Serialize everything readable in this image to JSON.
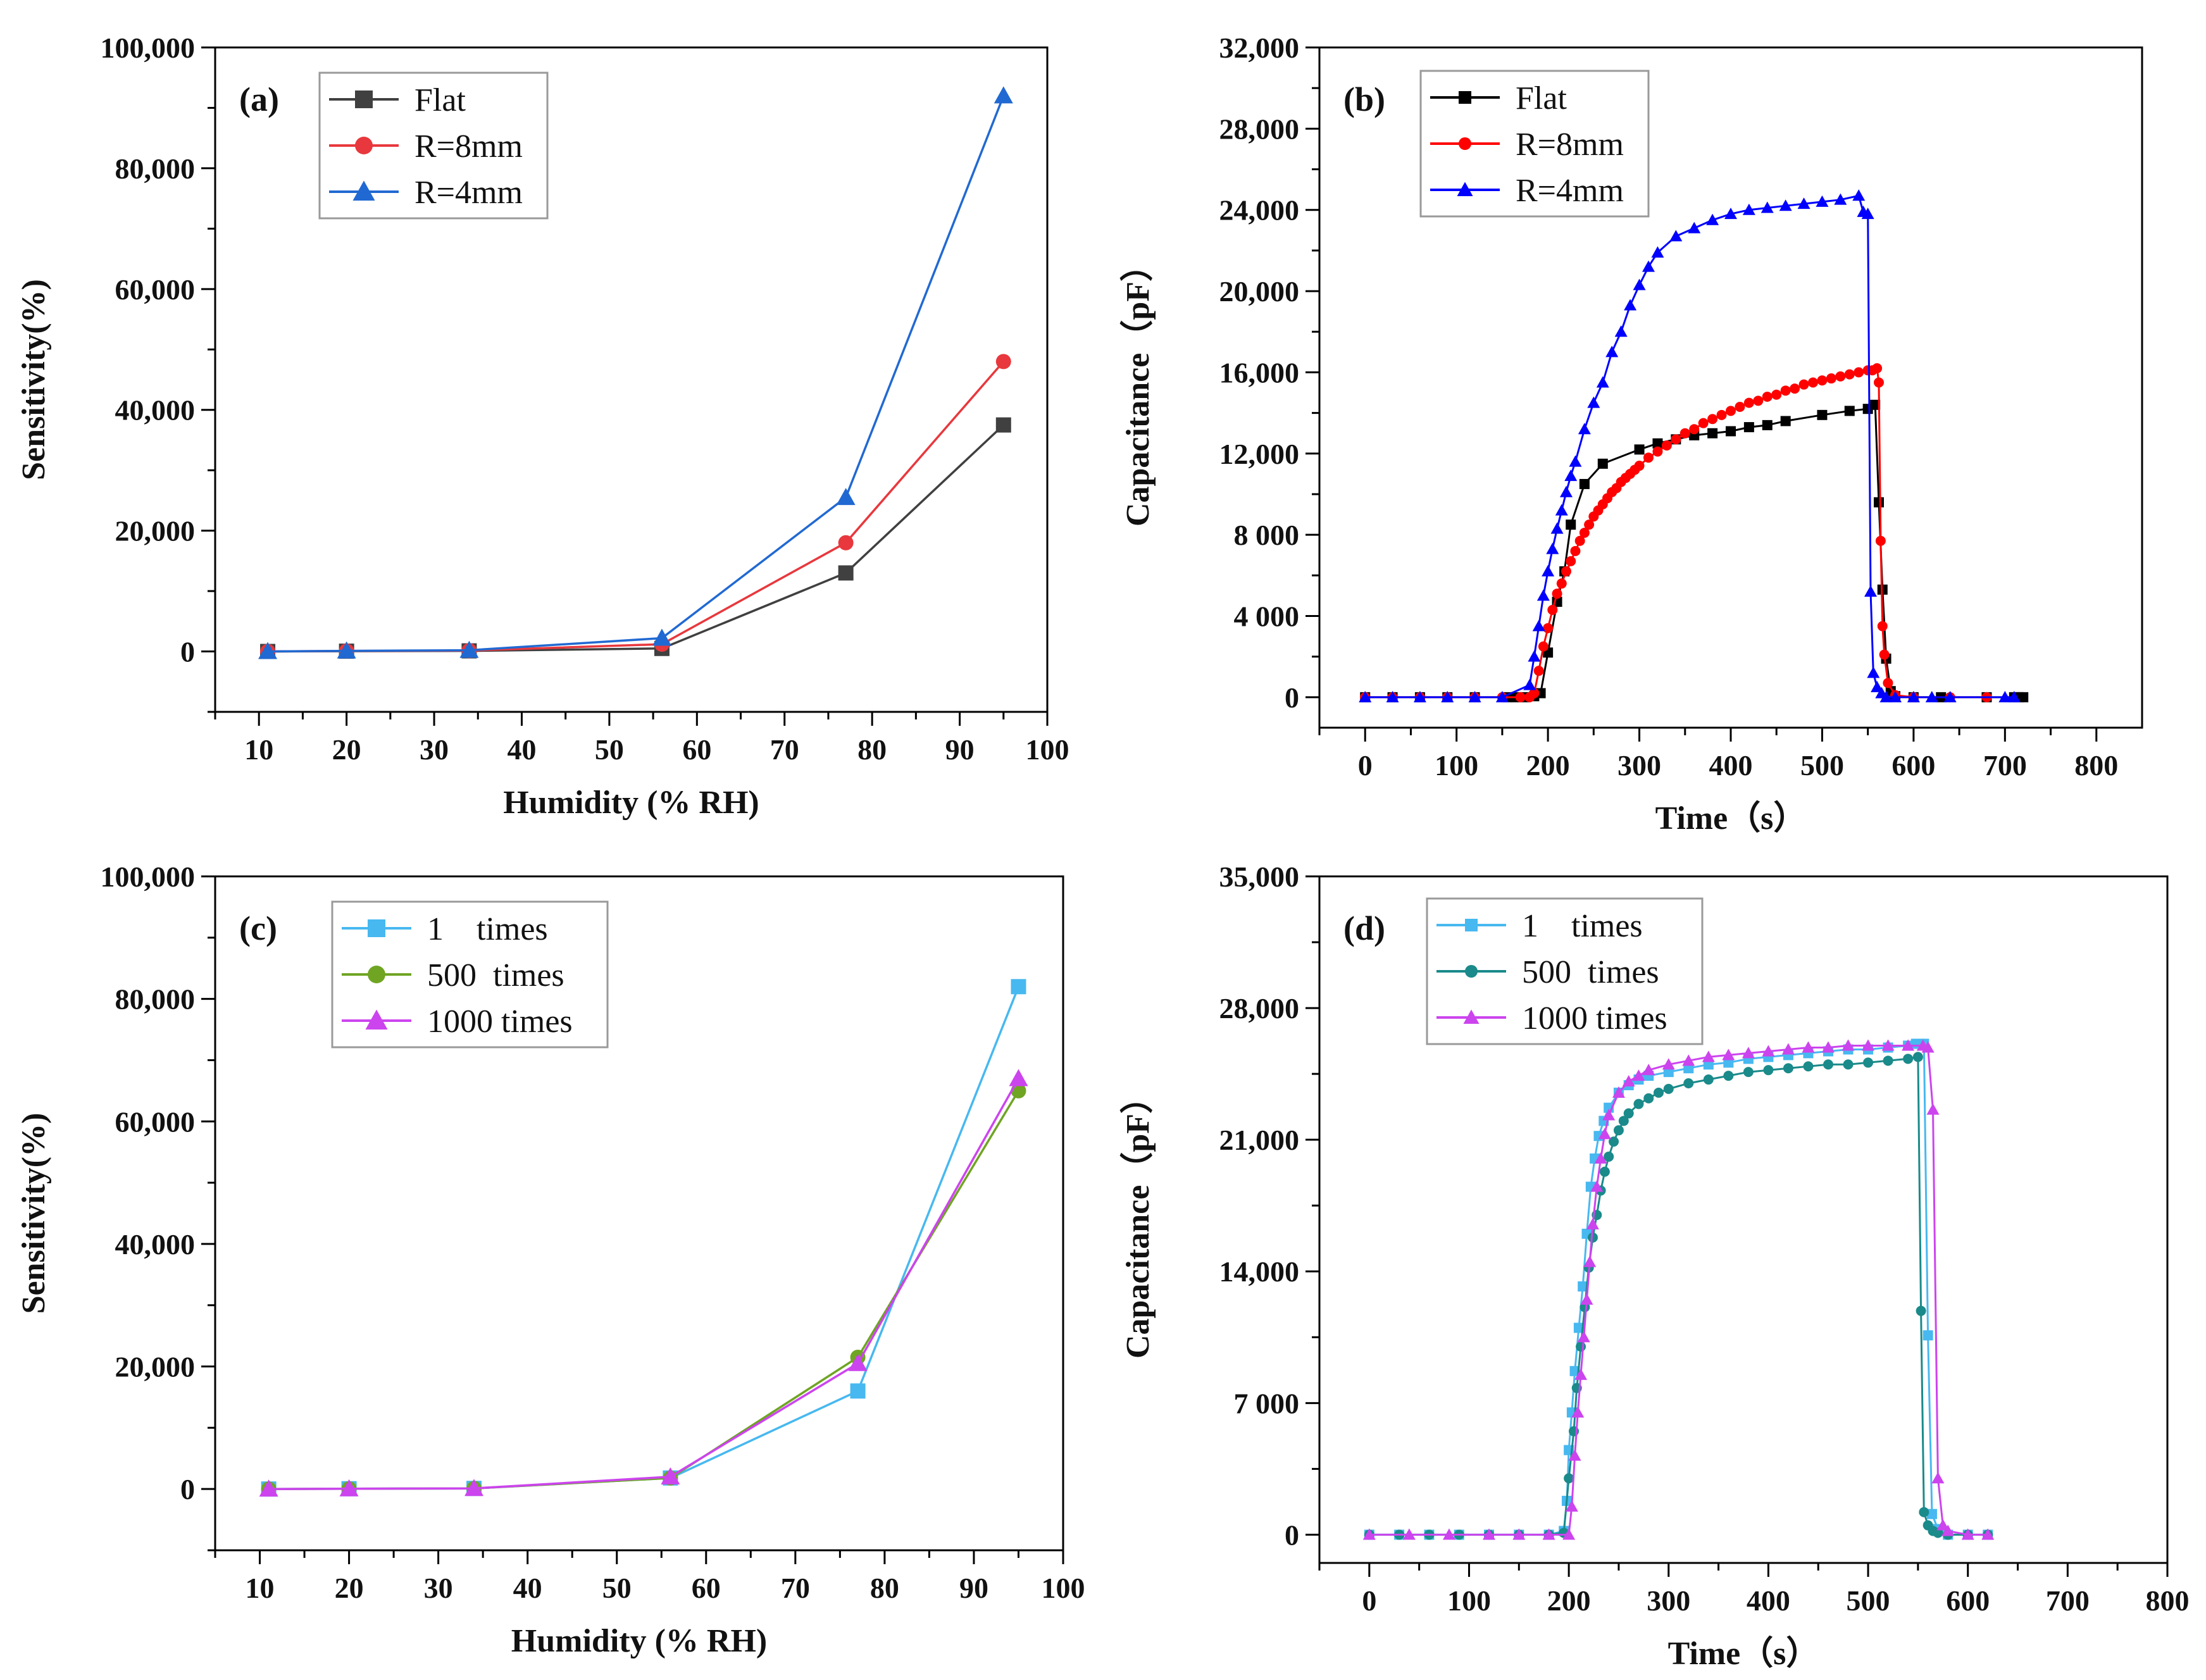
{
  "chart_data": [
    {
      "id": "a",
      "panel_label": "(a)",
      "type": "line",
      "xlabel": "Humidity (% RH)",
      "ylabel": "Sensitivity(%)",
      "xlim": [
        5,
        100
      ],
      "ylim": [
        -10000,
        100000
      ],
      "xticks": [
        10,
        20,
        30,
        40,
        50,
        60,
        70,
        80,
        90,
        100
      ],
      "yticks": [
        0,
        20000,
        40000,
        60000,
        80000,
        100000
      ],
      "ytick_labels": [
        "0",
        "20,000",
        "40,000",
        "60,000",
        "80,000",
        "100,000"
      ],
      "legend_position": "top-left",
      "series": [
        {
          "name": "Flat",
          "color": "#404040",
          "marker": "square",
          "x": [
            11,
            20,
            34,
            56,
            77,
            95
          ],
          "y": [
            0,
            50,
            100,
            500,
            13000,
            37500
          ]
        },
        {
          "name": "R=8mm",
          "color": "#e8383d",
          "marker": "circle",
          "x": [
            11,
            20,
            34,
            56,
            77,
            95
          ],
          "y": [
            0,
            80,
            150,
            1200,
            18000,
            48000
          ]
        },
        {
          "name": "R=4mm",
          "color": "#2169d2",
          "marker": "triangle",
          "x": [
            11,
            20,
            34,
            56,
            77,
            95
          ],
          "y": [
            0,
            100,
            200,
            2200,
            25500,
            92000
          ]
        }
      ]
    },
    {
      "id": "b",
      "panel_label": "(b)",
      "type": "line",
      "xlabel": "Time（s）",
      "ylabel": "Capacitance（pF）",
      "xlim": [
        -50,
        850
      ],
      "ylim": [
        -1500,
        32000
      ],
      "xticks": [
        0,
        100,
        200,
        300,
        400,
        500,
        600,
        700,
        800
      ],
      "yticks": [
        0,
        4000,
        8000,
        12000,
        16000,
        20000,
        24000,
        28000,
        32000
      ],
      "ytick_labels": [
        "0",
        "4 000",
        "8 000",
        "12,000",
        "16,000",
        "20,000",
        "24,000",
        "28,000",
        "32,000"
      ],
      "legend_position": "top-left",
      "series": [
        {
          "name": "Flat",
          "color": "#000000",
          "marker": "square",
          "x": [
            0,
            30,
            60,
            90,
            120,
            155,
            165,
            175,
            185,
            192,
            200,
            210,
            218,
            225,
            240,
            260,
            300,
            320,
            340,
            360,
            380,
            400,
            420,
            440,
            460,
            500,
            530,
            550,
            558,
            562,
            566,
            570,
            575,
            580,
            600,
            630,
            680,
            710,
            715,
            720
          ],
          "y": [
            0,
            0,
            0,
            0,
            0,
            0,
            0,
            0,
            50,
            200,
            2200,
            4700,
            6200,
            8500,
            10500,
            11500,
            12200,
            12500,
            12700,
            12900,
            13000,
            13100,
            13300,
            13400,
            13600,
            13900,
            14100,
            14200,
            14400,
            9600,
            5300,
            1900,
            300,
            50,
            0,
            0,
            0,
            0,
            0,
            0
          ]
        },
        {
          "name": "R=8mm",
          "color": "#ff0000",
          "marker": "circle",
          "x": [
            0,
            30,
            60,
            90,
            120,
            150,
            170,
            180,
            185,
            190,
            195,
            200,
            205,
            210,
            215,
            220,
            225,
            230,
            235,
            240,
            245,
            250,
            255,
            260,
            265,
            270,
            275,
            280,
            285,
            290,
            295,
            300,
            310,
            320,
            330,
            340,
            350,
            360,
            370,
            380,
            390,
            400,
            410,
            420,
            430,
            440,
            450,
            460,
            470,
            480,
            490,
            500,
            510,
            520,
            530,
            540,
            550,
            555,
            560,
            562,
            564,
            566,
            568,
            572,
            580,
            600,
            640,
            680
          ],
          "y": [
            0,
            0,
            0,
            0,
            0,
            0,
            0,
            0,
            200,
            1300,
            2500,
            3400,
            4300,
            5100,
            5600,
            6200,
            6700,
            7200,
            7700,
            8100,
            8500,
            8900,
            9200,
            9500,
            9800,
            10100,
            10300,
            10600,
            10800,
            11000,
            11200,
            11400,
            11800,
            12100,
            12400,
            12700,
            13000,
            13200,
            13500,
            13700,
            13900,
            14100,
            14300,
            14500,
            14600,
            14800,
            14900,
            15100,
            15200,
            15400,
            15500,
            15600,
            15700,
            15800,
            15900,
            16000,
            16100,
            16100,
            16200,
            15500,
            7700,
            3500,
            2100,
            700,
            100,
            0,
            0,
            0
          ]
        },
        {
          "name": "R=4mm",
          "color": "#0000ff",
          "marker": "triangle",
          "x": [
            0,
            30,
            60,
            90,
            120,
            150,
            180,
            185,
            190,
            195,
            200,
            205,
            210,
            215,
            220,
            225,
            230,
            240,
            250,
            260,
            270,
            280,
            290,
            300,
            310,
            320,
            340,
            360,
            380,
            400,
            420,
            440,
            460,
            480,
            500,
            520,
            540,
            545,
            550,
            553,
            556,
            560,
            565,
            570,
            580,
            600,
            620,
            640,
            700,
            710
          ],
          "y": [
            0,
            0,
            0,
            0,
            0,
            0,
            600,
            2000,
            3500,
            5000,
            6200,
            7300,
            8300,
            9200,
            10100,
            10900,
            11600,
            13200,
            14500,
            15500,
            17000,
            18000,
            19300,
            20300,
            21200,
            21900,
            22700,
            23100,
            23500,
            23800,
            24000,
            24100,
            24200,
            24300,
            24400,
            24500,
            24700,
            23900,
            23800,
            5200,
            1200,
            500,
            200,
            0,
            0,
            0,
            0,
            0,
            0,
            0
          ]
        }
      ]
    },
    {
      "id": "c",
      "panel_label": "(c)",
      "type": "line",
      "xlabel": "Humidity (% RH)",
      "ylabel": "Sensitivity(%)",
      "xlim": [
        5,
        100
      ],
      "ylim": [
        -10000,
        100000
      ],
      "xticks": [
        10,
        20,
        30,
        40,
        50,
        60,
        70,
        80,
        90,
        100
      ],
      "yticks": [
        0,
        20000,
        40000,
        60000,
        80000,
        100000
      ],
      "ytick_labels": [
        "0",
        "20,000",
        "40,000",
        "60,000",
        "80,000",
        "100,000"
      ],
      "legend_position": "top-left",
      "series": [
        {
          "name": "1    times",
          "color": "#47b8f0",
          "marker": "square",
          "x": [
            11,
            20,
            34,
            56,
            77,
            95
          ],
          "y": [
            0,
            50,
            100,
            1800,
            16000,
            82000
          ]
        },
        {
          "name": "500  times",
          "color": "#6fa523",
          "marker": "circle",
          "x": [
            11,
            20,
            34,
            56,
            77,
            95
          ],
          "y": [
            0,
            50,
            100,
            1800,
            21500,
            65000
          ]
        },
        {
          "name": "1000 times",
          "color": "#cc44ee",
          "marker": "triangle",
          "x": [
            11,
            20,
            34,
            56,
            77,
            95
          ],
          "y": [
            0,
            50,
            100,
            2000,
            20500,
            67000
          ]
        }
      ]
    },
    {
      "id": "d",
      "panel_label": "(d)",
      "type": "line",
      "xlabel": "Time（s）",
      "ylabel": "Capacitance（pF）",
      "xlim": [
        -50,
        800
      ],
      "ylim": [
        -1500,
        35000
      ],
      "xticks": [
        0,
        100,
        200,
        300,
        400,
        500,
        600,
        700,
        800
      ],
      "yticks": [
        0,
        7000,
        14000,
        21000,
        28000,
        35000
      ],
      "ytick_labels": [
        "0",
        "7 000",
        "14,000",
        "21,000",
        "28,000",
        "35,000"
      ],
      "legend_position": "top-left",
      "series": [
        {
          "name": "1    times",
          "color": "#47b8f0",
          "marker": "square",
          "x": [
            0,
            30,
            60,
            90,
            120,
            150,
            180,
            195,
            198,
            200,
            203,
            206,
            210,
            214,
            218,
            222,
            226,
            230,
            235,
            240,
            250,
            260,
            270,
            280,
            300,
            320,
            340,
            360,
            380,
            400,
            420,
            440,
            460,
            480,
            500,
            520,
            540,
            548,
            552,
            556,
            560,
            564,
            570,
            580,
            600,
            620
          ],
          "y": [
            0,
            0,
            0,
            0,
            0,
            0,
            0,
            200,
            1800,
            4500,
            6500,
            8700,
            11000,
            13200,
            16000,
            18500,
            20000,
            21200,
            22000,
            22700,
            23500,
            23900,
            24200,
            24400,
            24600,
            24800,
            25000,
            25100,
            25300,
            25400,
            25500,
            25600,
            25700,
            25800,
            25800,
            25900,
            26000,
            26100,
            26100,
            26100,
            10600,
            1100,
            300,
            0,
            0,
            0
          ]
        },
        {
          "name": "500  times",
          "color": "#1a8a8a",
          "marker": "circle",
          "x": [
            0,
            30,
            60,
            90,
            120,
            150,
            180,
            195,
            200,
            205,
            208,
            212,
            216,
            220,
            224,
            228,
            232,
            236,
            240,
            245,
            250,
            255,
            260,
            270,
            280,
            290,
            300,
            320,
            340,
            360,
            380,
            400,
            420,
            440,
            460,
            480,
            500,
            520,
            540,
            550,
            553,
            556,
            560,
            565,
            570,
            580,
            600,
            620
          ],
          "y": [
            0,
            0,
            0,
            0,
            0,
            0,
            0,
            100,
            3000,
            5500,
            7800,
            10000,
            12100,
            14200,
            15800,
            17000,
            18300,
            19300,
            20100,
            20900,
            21500,
            22000,
            22400,
            22900,
            23200,
            23500,
            23700,
            24000,
            24200,
            24400,
            24600,
            24700,
            24800,
            24900,
            25000,
            25000,
            25100,
            25200,
            25300,
            25400,
            11900,
            1200,
            500,
            200,
            100,
            0,
            0,
            0
          ]
        },
        {
          "name": "1000 times",
          "color": "#cc44ee",
          "marker": "triangle",
          "x": [
            0,
            40,
            80,
            120,
            150,
            180,
            200,
            203,
            206,
            209,
            212,
            215,
            218,
            221,
            224,
            228,
            232,
            236,
            240,
            250,
            260,
            270,
            280,
            300,
            320,
            340,
            360,
            380,
            400,
            420,
            440,
            460,
            480,
            500,
            520,
            540,
            555,
            560,
            565,
            570,
            575,
            580,
            600,
            620
          ],
          "y": [
            0,
            0,
            0,
            0,
            0,
            0,
            0,
            1500,
            4200,
            6500,
            8500,
            10500,
            12500,
            14500,
            16500,
            18500,
            20000,
            21300,
            22300,
            23500,
            24100,
            24400,
            24700,
            25000,
            25200,
            25400,
            25500,
            25600,
            25700,
            25800,
            25900,
            25900,
            26000,
            26000,
            26000,
            26000,
            26000,
            25900,
            22600,
            3000,
            500,
            200,
            0,
            0
          ]
        }
      ]
    }
  ]
}
